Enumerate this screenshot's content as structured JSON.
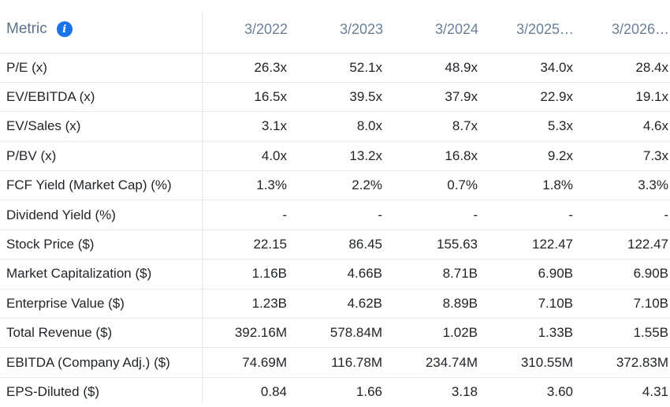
{
  "table": {
    "metric_header": "Metric",
    "info_icon": "info-icon",
    "periods": [
      "3/2022",
      "3/2023",
      "3/2024",
      "3/2025…",
      "3/2026…"
    ],
    "rows": [
      {
        "metric": "P/E (x)",
        "values": [
          "26.3x",
          "52.1x",
          "48.9x",
          "34.0x",
          "28.4x"
        ]
      },
      {
        "metric": "EV/EBITDA (x)",
        "values": [
          "16.5x",
          "39.5x",
          "37.9x",
          "22.9x",
          "19.1x"
        ]
      },
      {
        "metric": "EV/Sales (x)",
        "values": [
          "3.1x",
          "8.0x",
          "8.7x",
          "5.3x",
          "4.6x"
        ]
      },
      {
        "metric": "P/BV (x)",
        "values": [
          "4.0x",
          "13.2x",
          "16.8x",
          "9.2x",
          "7.3x"
        ]
      },
      {
        "metric": "FCF Yield (Market Cap) (%)",
        "values": [
          "1.3%",
          "2.2%",
          "0.7%",
          "1.8%",
          "3.3%"
        ]
      },
      {
        "metric": "Dividend Yield (%)",
        "values": [
          "-",
          "-",
          "-",
          "-",
          "-"
        ]
      },
      {
        "metric": "Stock Price ($)",
        "values": [
          "22.15",
          "86.45",
          "155.63",
          "122.47",
          "122.47"
        ]
      },
      {
        "metric": "Market Capitalization ($)",
        "values": [
          "1.16B",
          "4.66B",
          "8.71B",
          "6.90B",
          "6.90B"
        ]
      },
      {
        "metric": "Enterprise Value ($)",
        "values": [
          "1.23B",
          "4.62B",
          "8.89B",
          "7.10B",
          "7.10B"
        ]
      },
      {
        "metric": "Total Revenue ($)",
        "values": [
          "392.16M",
          "578.84M",
          "1.02B",
          "1.33B",
          "1.55B"
        ]
      },
      {
        "metric": "EBITDA (Company Adj.) ($)",
        "values": [
          "74.69M",
          "116.78M",
          "234.74M",
          "310.55M",
          "372.83M"
        ]
      },
      {
        "metric": "EPS-Diluted ($)",
        "values": [
          "0.84",
          "1.66",
          "3.18",
          "3.60",
          "4.31"
        ]
      }
    ]
  },
  "colors": {
    "header_text": "#6b7f96",
    "info_icon_bg": "#1a73e8",
    "row_border": "#e6e8ec",
    "body_text": "#212529"
  }
}
